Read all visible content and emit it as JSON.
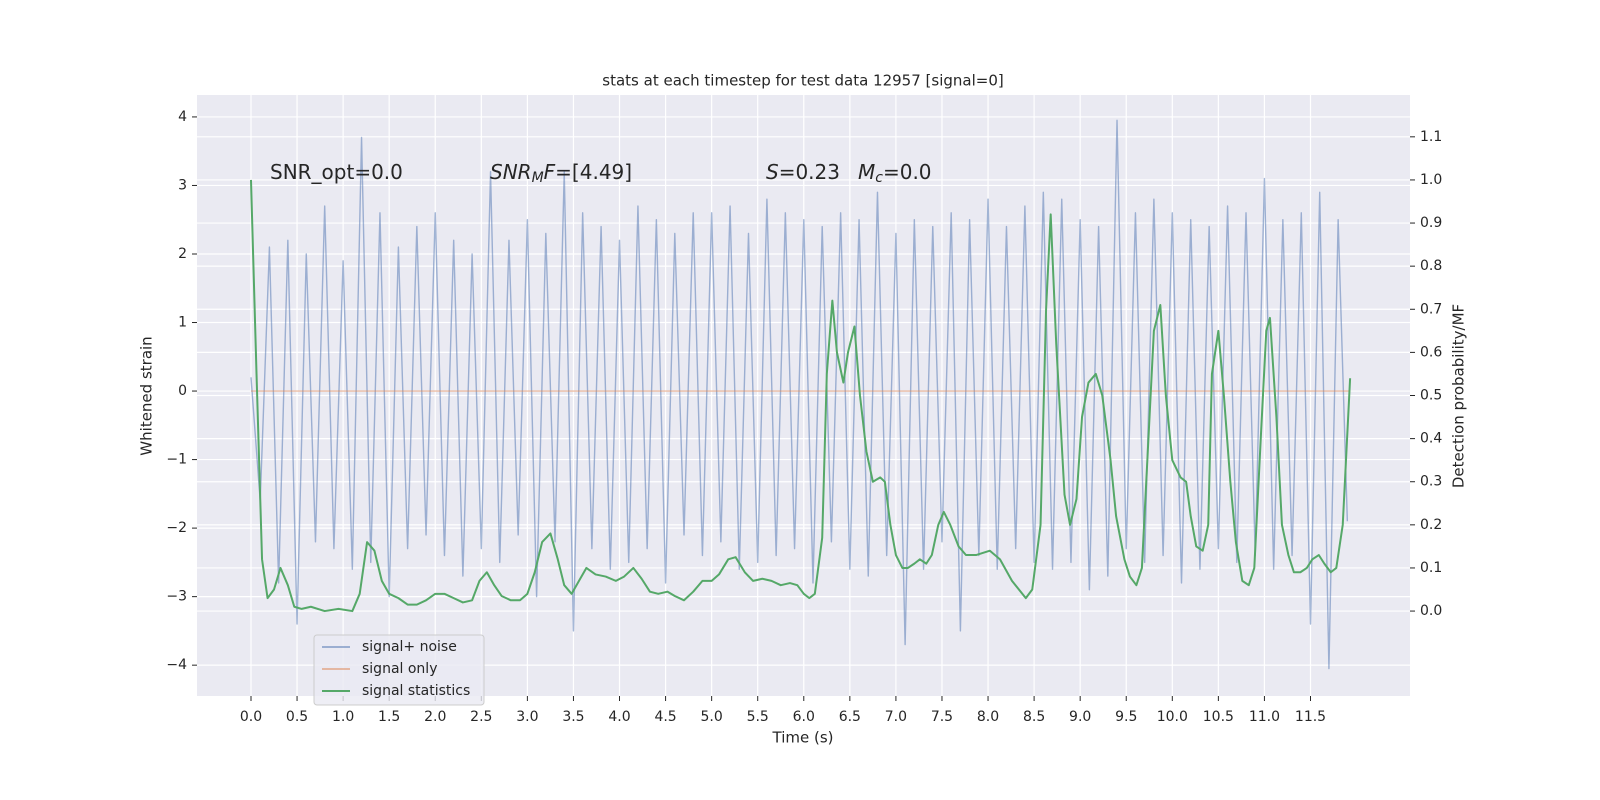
{
  "chart_data": {
    "type": "line",
    "title": "stats at each timestep for test data 12957 [signal=0]",
    "x_label": "Time (s)",
    "y_label": "Whitened strain",
    "y2_label": "Detection probability/MF",
    "xlim": [
      -0.586,
      12.58
    ],
    "ylim": [
      -4.45,
      4.32
    ],
    "y2lim": [
      -0.197,
      1.197
    ],
    "xticks": [
      {
        "value": 0,
        "label": "0.0"
      },
      0.5,
      {
        "value": 1,
        "label": "1.0"
      },
      1.5,
      {
        "value": 2,
        "label": "2.0"
      },
      2.5,
      {
        "value": 3,
        "label": "3.0"
      },
      3.5,
      {
        "value": 4,
        "label": "4.0"
      },
      4.5,
      {
        "value": 5,
        "label": "5.0"
      },
      5.5,
      {
        "value": 6,
        "label": "6.0"
      },
      6.5,
      {
        "value": 7,
        "label": "7.0"
      },
      7.5,
      {
        "value": 8,
        "label": "8.0"
      },
      8.5,
      {
        "value": 9,
        "label": "9.0"
      },
      9.5,
      {
        "value": 10,
        "label": "10.0"
      },
      10.5,
      {
        "value": 11,
        "label": "11.0"
      },
      11.5
    ],
    "yticks": [
      {
        "value": -4,
        "label": "−4"
      },
      {
        "value": -3,
        "label": "−3"
      },
      {
        "value": -2,
        "label": "−2"
      },
      {
        "value": -1,
        "label": "−1"
      },
      0,
      1,
      2,
      3,
      4
    ],
    "y2ticks": [
      {
        "value": 0,
        "label": "0.0"
      },
      0.1,
      0.2,
      0.3,
      0.4,
      0.5,
      0.6,
      0.7,
      0.8,
      0.9,
      {
        "value": 1,
        "label": "1.0"
      },
      1.1
    ],
    "grid": true,
    "legend": "lower left",
    "annotations": [
      [
        {
          "text": "SNR_opt=0.0"
        }
      ],
      [
        {
          "text": "SNR",
          "italic": true
        },
        {
          "text": "M",
          "italic": true,
          "sub": true
        },
        {
          "text": "F",
          "italic": true
        },
        {
          "text": "=[4.49]"
        }
      ],
      [
        {
          "text": "S",
          "italic": true
        },
        {
          "text": "=0.23"
        }
      ],
      [
        {
          "text": "M",
          "italic": true
        },
        {
          "text": "c",
          "italic": true,
          "sub": true
        },
        {
          "text": "=0.0"
        }
      ]
    ],
    "series": [
      {
        "name": "signal+ noise",
        "color": "#4c72b0",
        "opacity": 0.5,
        "x": [
          0.0,
          0.1,
          0.2,
          0.3,
          0.4,
          0.5,
          0.6,
          0.7,
          0.8,
          0.9,
          1.0,
          1.1,
          1.2,
          1.3,
          1.4,
          1.5,
          1.6,
          1.7,
          1.8,
          1.9,
          2.0,
          2.1,
          2.2,
          2.3,
          2.4,
          2.5,
          2.6,
          2.7,
          2.8,
          2.9,
          3.0,
          3.1,
          3.2,
          3.3,
          3.4,
          3.5,
          3.6,
          3.7,
          3.8,
          3.9,
          4.0,
          4.1,
          4.2,
          4.3,
          4.4,
          4.5,
          4.6,
          4.7,
          4.8,
          4.9,
          5.0,
          5.1,
          5.2,
          5.3,
          5.4,
          5.5,
          5.6,
          5.7,
          5.8,
          5.9,
          6.0,
          6.1,
          6.2,
          6.3,
          6.4,
          6.5,
          6.6,
          6.7,
          6.8,
          6.9,
          7.0,
          7.1,
          7.2,
          7.3,
          7.4,
          7.5,
          7.6,
          7.7,
          7.8,
          7.9,
          8.0,
          8.1,
          8.2,
          8.3,
          8.4,
          8.5,
          8.6,
          8.7,
          8.8,
          8.9,
          9.0,
          9.1,
          9.2,
          9.3,
          9.4,
          9.5,
          9.6,
          9.7,
          9.8,
          9.9,
          10.0,
          10.1,
          10.2,
          10.3,
          10.4,
          10.5,
          10.6,
          10.7,
          10.8,
          10.9,
          11.0,
          11.1,
          11.2,
          11.3,
          11.4,
          11.5,
          11.6,
          11.7,
          11.8,
          11.9
        ],
        "values": [
          0.2,
          -1.6,
          2.1,
          -2.8,
          2.2,
          -3.4,
          2.0,
          -2.2,
          2.7,
          -2.3,
          1.9,
          -2.6,
          3.7,
          -2.5,
          2.6,
          -3.0,
          2.1,
          -2.3,
          2.4,
          -2.1,
          2.6,
          -2.4,
          2.2,
          -2.7,
          2.0,
          -2.3,
          3.2,
          -2.5,
          2.2,
          -2.1,
          2.5,
          -3.0,
          2.3,
          -2.2,
          3.2,
          -3.5,
          2.6,
          -2.3,
          2.4,
          -2.6,
          2.2,
          -2.5,
          2.7,
          -2.3,
          2.5,
          -2.8,
          2.3,
          -2.1,
          2.6,
          -2.4,
          2.6,
          -2.2,
          2.7,
          -2.6,
          2.3,
          -2.5,
          2.8,
          -2.4,
          2.6,
          -2.3,
          2.5,
          -2.8,
          2.4,
          -2.2,
          2.6,
          -2.6,
          2.5,
          -2.7,
          2.9,
          -2.4,
          2.3,
          -3.7,
          2.5,
          -2.6,
          2.4,
          -2.2,
          2.6,
          -3.5,
          2.5,
          -2.4,
          2.8,
          -2.6,
          2.4,
          -2.3,
          2.7,
          -2.5,
          2.9,
          -2.6,
          2.8,
          -2.5,
          2.5,
          -2.9,
          2.4,
          -2.7,
          3.95,
          -2.3,
          2.6,
          -2.5,
          2.8,
          -2.4,
          2.6,
          -2.8,
          2.5,
          -2.6,
          2.4,
          -2.3,
          2.7,
          -2.5,
          2.6,
          -2.4,
          3.1,
          -2.6,
          2.5,
          -2.4,
          2.6,
          -3.4,
          2.9,
          -4.05,
          2.5,
          -1.9
        ]
      },
      {
        "name": "signal only",
        "color": "#dd8452",
        "opacity": 0.5,
        "x": [
          0.0,
          11.93
        ],
        "values": [
          0,
          0
        ]
      },
      {
        "name": "signal statistics",
        "color": "#55a868",
        "opacity": 1,
        "axis": "y2",
        "x": [
          0,
          0.06,
          0.12,
          0.18,
          0.25,
          0.32,
          0.4,
          0.47,
          0.55,
          0.65,
          0.8,
          0.95,
          1.1,
          1.18,
          1.26,
          1.34,
          1.42,
          1.5,
          1.6,
          1.7,
          1.8,
          1.9,
          2.0,
          2.1,
          2.2,
          2.3,
          2.4,
          2.48,
          2.56,
          2.64,
          2.72,
          2.82,
          2.92,
          3.0,
          3.08,
          3.16,
          3.25,
          3.33,
          3.4,
          3.48,
          3.56,
          3.64,
          3.74,
          3.85,
          3.96,
          4.05,
          4.15,
          4.24,
          4.33,
          4.42,
          4.52,
          4.6,
          4.7,
          4.8,
          4.9,
          5.0,
          5.08,
          5.18,
          5.26,
          5.36,
          5.45,
          5.55,
          5.65,
          5.75,
          5.85,
          5.93,
          6.0,
          6.06,
          6.12,
          6.2,
          6.25,
          6.31,
          6.36,
          6.43,
          6.48,
          6.55,
          6.61,
          6.68,
          6.75,
          6.83,
          6.88,
          6.94,
          7.0,
          7.07,
          7.13,
          7.2,
          7.26,
          7.33,
          7.39,
          7.46,
          7.52,
          7.59,
          7.68,
          7.76,
          7.87,
          8.02,
          8.13,
          8.26,
          8.41,
          8.48,
          8.57,
          8.63,
          8.68,
          8.74,
          8.83,
          8.89,
          8.96,
          9.02,
          9.09,
          9.17,
          9.24,
          9.33,
          9.39,
          9.48,
          9.54,
          9.61,
          9.67,
          9.8,
          9.87,
          9.93,
          10.0,
          10.09,
          10.15,
          10.2,
          10.26,
          10.33,
          10.39,
          10.43,
          10.5,
          10.56,
          10.63,
          10.69,
          10.76,
          10.83,
          10.89,
          10.96,
          11.02,
          11.06,
          11.13,
          11.19,
          11.26,
          11.32,
          11.39,
          11.46,
          11.52,
          11.59,
          11.65,
          11.72,
          11.78,
          11.85,
          11.93
        ],
        "values": [
          1.0,
          0.55,
          0.12,
          0.03,
          0.05,
          0.1,
          0.06,
          0.01,
          0.005,
          0.01,
          0.0,
          0.005,
          0.0,
          0.04,
          0.16,
          0.14,
          0.07,
          0.04,
          0.03,
          0.015,
          0.015,
          0.025,
          0.04,
          0.04,
          0.03,
          0.02,
          0.025,
          0.07,
          0.09,
          0.06,
          0.035,
          0.025,
          0.025,
          0.04,
          0.09,
          0.16,
          0.18,
          0.12,
          0.06,
          0.04,
          0.07,
          0.1,
          0.085,
          0.08,
          0.07,
          0.08,
          0.1,
          0.075,
          0.045,
          0.04,
          0.045,
          0.035,
          0.025,
          0.045,
          0.07,
          0.07,
          0.085,
          0.12,
          0.125,
          0.09,
          0.07,
          0.075,
          0.07,
          0.06,
          0.065,
          0.06,
          0.04,
          0.03,
          0.04,
          0.17,
          0.55,
          0.72,
          0.6,
          0.53,
          0.6,
          0.66,
          0.5,
          0.37,
          0.3,
          0.31,
          0.3,
          0.2,
          0.13,
          0.1,
          0.1,
          0.11,
          0.12,
          0.11,
          0.13,
          0.2,
          0.23,
          0.2,
          0.15,
          0.13,
          0.13,
          0.14,
          0.12,
          0.07,
          0.03,
          0.05,
          0.2,
          0.7,
          0.92,
          0.62,
          0.27,
          0.2,
          0.26,
          0.45,
          0.53,
          0.55,
          0.5,
          0.35,
          0.22,
          0.12,
          0.08,
          0.06,
          0.1,
          0.65,
          0.71,
          0.5,
          0.35,
          0.31,
          0.3,
          0.22,
          0.15,
          0.14,
          0.2,
          0.55,
          0.65,
          0.5,
          0.3,
          0.16,
          0.07,
          0.06,
          0.1,
          0.4,
          0.65,
          0.68,
          0.45,
          0.2,
          0.13,
          0.09,
          0.09,
          0.1,
          0.12,
          0.13,
          0.11,
          0.09,
          0.1,
          0.2,
          0.54
        ]
      }
    ]
  }
}
